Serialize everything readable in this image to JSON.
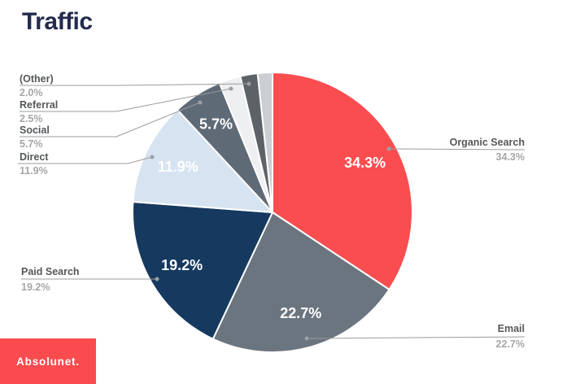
{
  "title": "Traffic",
  "title_color": "#232b4e",
  "chart_data": {
    "type": "pie",
    "title": "Traffic",
    "direction": "clockwise",
    "start_angle_deg": 0,
    "legend_position": "callouts",
    "slices": [
      {
        "label": "Organic Search",
        "value": 34.3,
        "pct_label": "34.3%",
        "color": "#fa4d50",
        "inner_label": true
      },
      {
        "label": "Email",
        "value": 22.7,
        "pct_label": "22.7%",
        "color": "#6b7580",
        "inner_label": true
      },
      {
        "label": "Paid Search",
        "value": 19.2,
        "pct_label": "19.2%",
        "color": "#16395f",
        "inner_label": true
      },
      {
        "label": "Direct",
        "value": 11.9,
        "pct_label": "11.9%",
        "color": "#d6e3f1",
        "inner_label": true
      },
      {
        "label": "Social",
        "value": 5.7,
        "pct_label": "5.7%",
        "color": "#5f6a77",
        "inner_label": true
      },
      {
        "label": "Referral",
        "value": 2.5,
        "pct_label": "2.5%",
        "color": "#eeeff0",
        "inner_label": false
      },
      {
        "label": "(Other)",
        "value": 2.0,
        "pct_label": "2.0%",
        "color": "#5d6268",
        "inner_label": false
      },
      {
        "label": "",
        "value": 1.7,
        "pct_label": "",
        "color": "#cbced2",
        "inner_label": false
      }
    ]
  },
  "logo": {
    "text": "Absolunet.",
    "bg_color": "#fa4b4e",
    "text_color": "#ffffff"
  }
}
